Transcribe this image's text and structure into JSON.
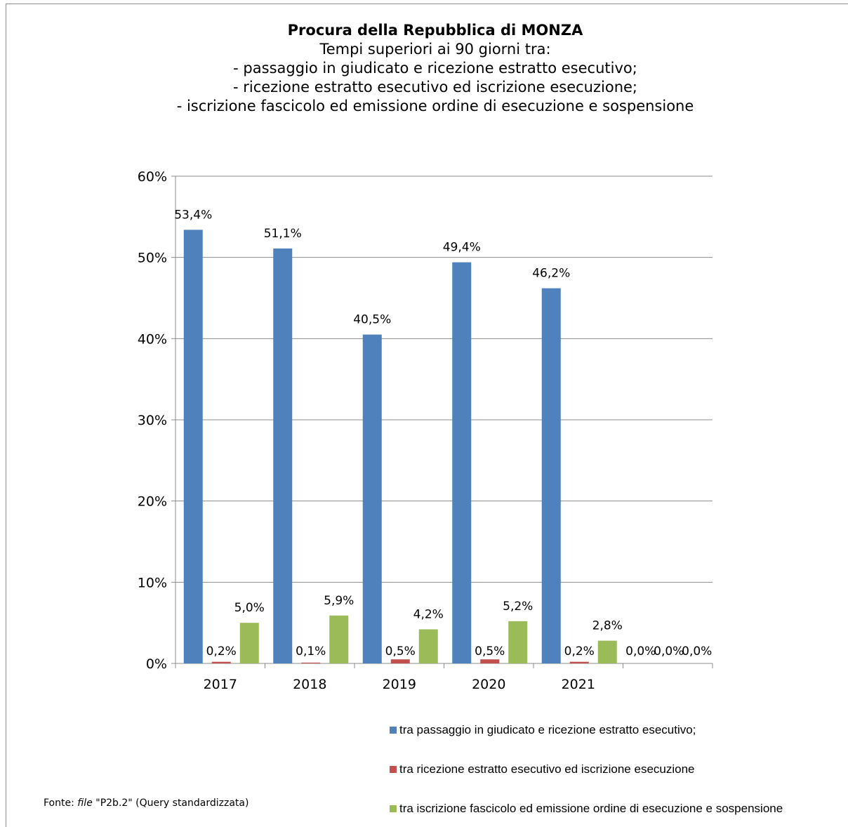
{
  "header_clip": "(grafico)",
  "title": "Procura della Repubblica di MONZA",
  "subtitle_lines": [
    "Tempi superiori ai 90 giorni tra:",
    "- passaggio in giudicato e ricezione estratto esecutivo;",
    "- ricezione estratto esecutivo ed iscrizione esecuzione;",
    "- iscrizione fascicolo ed emissione ordine di esecuzione e sospensione"
  ],
  "source": {
    "prefix": "Fonte: ",
    "file_word": "file",
    "rest": " \"P2b.2\" (Query standardizzata)"
  },
  "chart_data": {
    "type": "bar",
    "categories": [
      "2017",
      "2018",
      "2019",
      "2020",
      "2021",
      ""
    ],
    "series": [
      {
        "name": "tra passaggio in giudicato e ricezione estratto esecutivo;",
        "color": "#4f81bd",
        "values": [
          53.4,
          51.1,
          40.5,
          49.4,
          46.2,
          0.0
        ],
        "labels": [
          "53,4%",
          "51,1%",
          "40,5%",
          "49,4%",
          "46,2%",
          "0,0%"
        ]
      },
      {
        "name": "tra ricezione estratto esecutivo ed iscrizione esecuzione",
        "color": "#c0504d",
        "values": [
          0.2,
          0.1,
          0.5,
          0.5,
          0.2,
          0.0
        ],
        "labels": [
          "0,2%",
          "0,1%",
          "0,5%",
          "0,5%",
          "0,2%",
          "0,0%"
        ]
      },
      {
        "name": "tra iscrizione fascicolo ed emissione ordine di esecuzione e sospensione",
        "color": "#9bbb59",
        "values": [
          5.0,
          5.9,
          4.2,
          5.2,
          2.8,
          0.0
        ],
        "labels": [
          "5,0%",
          "5,9%",
          "4,2%",
          "5,2%",
          "2,8%",
          "0,0%"
        ]
      }
    ],
    "yticks": [
      "0%",
      "10%",
      "20%",
      "30%",
      "40%",
      "50%",
      "60%"
    ],
    "ylim": [
      0,
      60
    ],
    "grid": true,
    "legend": "bottom-right"
  }
}
